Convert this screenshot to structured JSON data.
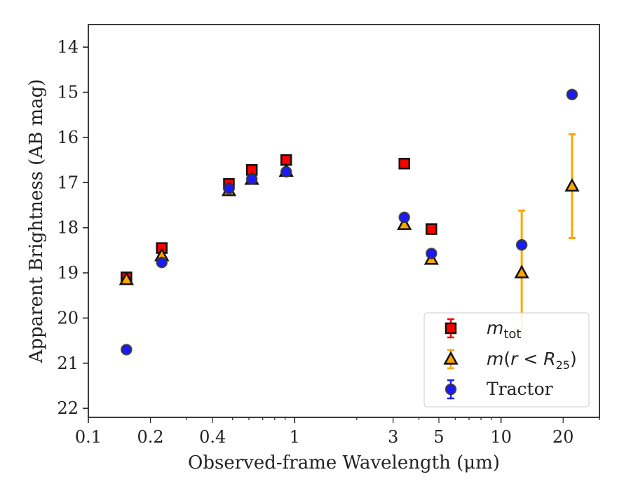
{
  "chart_data": {
    "type": "scatter",
    "xscale": "log",
    "xlim": [
      0.1,
      30
    ],
    "ylim": [
      22.2,
      13.5
    ],
    "y_inverted": true,
    "xlabel": "Observed-frame Wavelength (μm)",
    "ylabel": "Apparent Brightness (AB mag)",
    "xticks": [
      {
        "value": 0.1,
        "label": "0.1"
      },
      {
        "value": 0.2,
        "label": "0.2"
      },
      {
        "value": 0.4,
        "label": "0.4"
      },
      {
        "value": 1,
        "label": "1"
      },
      {
        "value": 3,
        "label": "3"
      },
      {
        "value": 5,
        "label": "5"
      },
      {
        "value": 10,
        "label": "10"
      },
      {
        "value": 20,
        "label": "20"
      }
    ],
    "yticks": [
      {
        "value": 14,
        "label": "14"
      },
      {
        "value": 15,
        "label": "15"
      },
      {
        "value": 16,
        "label": "16"
      },
      {
        "value": 17,
        "label": "17"
      },
      {
        "value": 18,
        "label": "18"
      },
      {
        "value": 19,
        "label": "19"
      },
      {
        "value": 20,
        "label": "20"
      },
      {
        "value": 21,
        "label": "21"
      },
      {
        "value": 22,
        "label": "22"
      }
    ],
    "grid": false,
    "legend_position": "lower-right",
    "series": [
      {
        "name": "m_tot",
        "marker": "square",
        "color": "#ff0000",
        "points": [
          {
            "x": 0.153,
            "y": 19.1,
            "err": 0.08
          },
          {
            "x": 0.227,
            "y": 18.45,
            "err": 0.07
          },
          {
            "x": 0.48,
            "y": 17.03,
            "err": 0.06
          },
          {
            "x": 0.62,
            "y": 16.72,
            "err": 0.06
          },
          {
            "x": 0.91,
            "y": 16.5,
            "err": 0.06
          },
          {
            "x": 3.4,
            "y": 16.58,
            "err": 0.06
          },
          {
            "x": 4.6,
            "y": 18.03,
            "err": 0.06
          }
        ]
      },
      {
        "name": "m(r < R25)",
        "marker": "triangle",
        "color": "#ffa500",
        "points": [
          {
            "x": 0.153,
            "y": 19.15,
            "err": 0.05
          },
          {
            "x": 0.227,
            "y": 18.62,
            "err": 0.05
          },
          {
            "x": 0.48,
            "y": 17.18,
            "err": 0.05
          },
          {
            "x": 0.62,
            "y": 16.93,
            "err": 0.05
          },
          {
            "x": 0.91,
            "y": 16.75,
            "err": 0.05
          },
          {
            "x": 3.4,
            "y": 17.93,
            "err": 0.05
          },
          {
            "x": 4.6,
            "y": 18.7,
            "err": 0.05
          },
          {
            "x": 12.6,
            "y": 19.0,
            "err": 1.38
          },
          {
            "x": 22.1,
            "y": 17.08,
            "err": 1.15
          }
        ]
      },
      {
        "name": "Tractor",
        "marker": "circle",
        "color": "#1a1aff",
        "points": [
          {
            "x": 0.153,
            "y": 20.7,
            "err": 0.08
          },
          {
            "x": 0.227,
            "y": 18.77,
            "err": 0.06
          },
          {
            "x": 0.48,
            "y": 17.13,
            "err": 0.05
          },
          {
            "x": 0.62,
            "y": 16.92,
            "err": 0.05
          },
          {
            "x": 0.91,
            "y": 16.76,
            "err": 0.05
          },
          {
            "x": 3.4,
            "y": 17.77,
            "err": 0.08
          },
          {
            "x": 4.6,
            "y": 18.57,
            "err": 0.08
          },
          {
            "x": 12.6,
            "y": 18.38,
            "err": 0.08
          },
          {
            "x": 22.1,
            "y": 15.05,
            "err": 0.08
          }
        ]
      }
    ]
  }
}
